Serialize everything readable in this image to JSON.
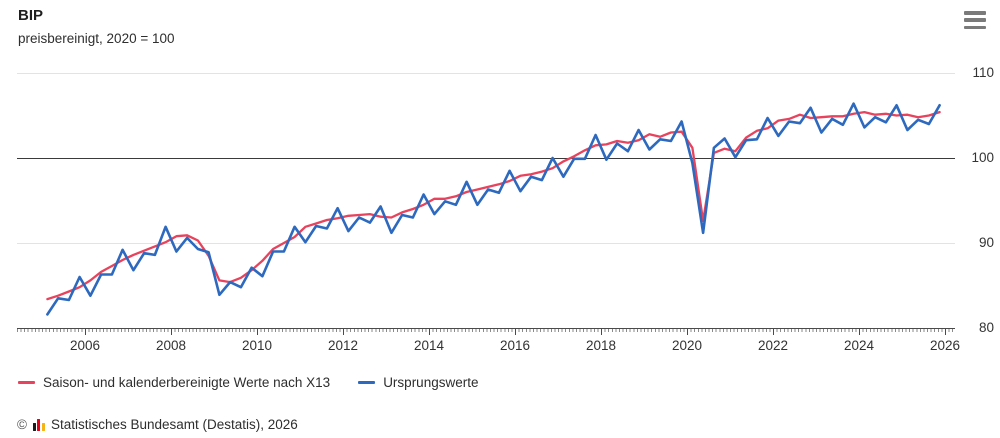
{
  "header": {
    "title": "BIP",
    "subtitle": "preisbereinigt, 2020 = 100"
  },
  "menu": {
    "icon": "hamburger-menu-icon"
  },
  "axes": {
    "y_ticks": [
      "110",
      "100",
      "90",
      "80"
    ],
    "x_ticks": [
      2006,
      2008,
      2010,
      2012,
      2014,
      2016,
      2018,
      2020,
      2022,
      2024,
      2026
    ]
  },
  "legend": {
    "items": [
      {
        "label": "Saison- und kalenderbereinigte Werte nach X13",
        "color": "#e8435c"
      },
      {
        "label": "Ursprungswerte",
        "color": "#2d69be"
      }
    ]
  },
  "footer": {
    "copyright": "©",
    "icon": "destatis-bars-icon",
    "text": "Statistisches Bundesamt (Destatis), 2026"
  },
  "colors": {
    "adjusted_line": "#e8435c",
    "original_line": "#2d69be",
    "baseline": "#3a3a3a",
    "gridline": "#e3e3e3"
  },
  "chart_data": {
    "type": "line",
    "title": "BIP",
    "subtitle": "preisbereinigt, 2020 = 100",
    "frequency": "quarterly",
    "x_start": 2005.125,
    "x_step": 0.25,
    "xlim": [
      2005,
      2026.2
    ],
    "ylim": [
      80,
      110
    ],
    "baseline": 100,
    "y_gridlines": [
      90,
      110
    ],
    "legend_position": "bottom",
    "series": [
      {
        "name": "Saison- und kalenderbereinigte Werte nach X13",
        "color": "#e8435c",
        "values": [
          83.4,
          83.8,
          84.3,
          84.8,
          85.6,
          86.6,
          87.3,
          88.0,
          88.6,
          89.1,
          89.6,
          90.1,
          90.8,
          90.9,
          90.3,
          88.5,
          85.6,
          85.4,
          85.9,
          86.8,
          87.9,
          89.3,
          90.0,
          90.7,
          91.9,
          92.3,
          92.7,
          92.9,
          93.2,
          93.3,
          93.4,
          93.1,
          93.0,
          93.6,
          94.0,
          94.5,
          95.2,
          95.2,
          95.5,
          96.0,
          96.3,
          96.6,
          96.9,
          97.3,
          97.9,
          98.1,
          98.4,
          98.8,
          99.6,
          100.2,
          100.9,
          101.5,
          101.6,
          102.0,
          101.8,
          102.1,
          102.8,
          102.5,
          103.0,
          103.1,
          101.2,
          92.6,
          100.6,
          101.1,
          100.8,
          102.4,
          103.2,
          103.5,
          104.4,
          104.6,
          105.1,
          104.7,
          104.8,
          104.9,
          104.9,
          105.2,
          105.4,
          105.1,
          105.2,
          105.0,
          105.1,
          104.8,
          105.0,
          105.4
        ]
      },
      {
        "name": "Ursprungswerte",
        "color": "#2d69be",
        "values": [
          81.6,
          83.5,
          83.3,
          86.0,
          83.8,
          86.3,
          86.3,
          89.2,
          86.8,
          88.8,
          88.6,
          91.9,
          89.0,
          90.6,
          89.3,
          88.9,
          83.9,
          85.4,
          84.8,
          87.1,
          86.1,
          89.0,
          89.0,
          91.9,
          90.1,
          92.0,
          91.7,
          94.1,
          91.4,
          93.0,
          92.4,
          94.3,
          91.2,
          93.3,
          93.0,
          95.7,
          93.4,
          94.9,
          94.5,
          97.2,
          94.5,
          96.3,
          95.9,
          98.5,
          96.1,
          97.8,
          97.4,
          100.0,
          97.8,
          99.9,
          99.9,
          102.7,
          99.8,
          101.7,
          100.8,
          103.3,
          101.0,
          102.2,
          102.0,
          104.3,
          99.4,
          91.2,
          101.2,
          102.3,
          100.1,
          102.1,
          102.2,
          104.7,
          102.6,
          104.3,
          104.1,
          105.9,
          103.0,
          104.6,
          103.9,
          106.4,
          103.6,
          104.8,
          104.2,
          106.2,
          103.3,
          104.5,
          104.0,
          106.2
        ]
      }
    ]
  }
}
